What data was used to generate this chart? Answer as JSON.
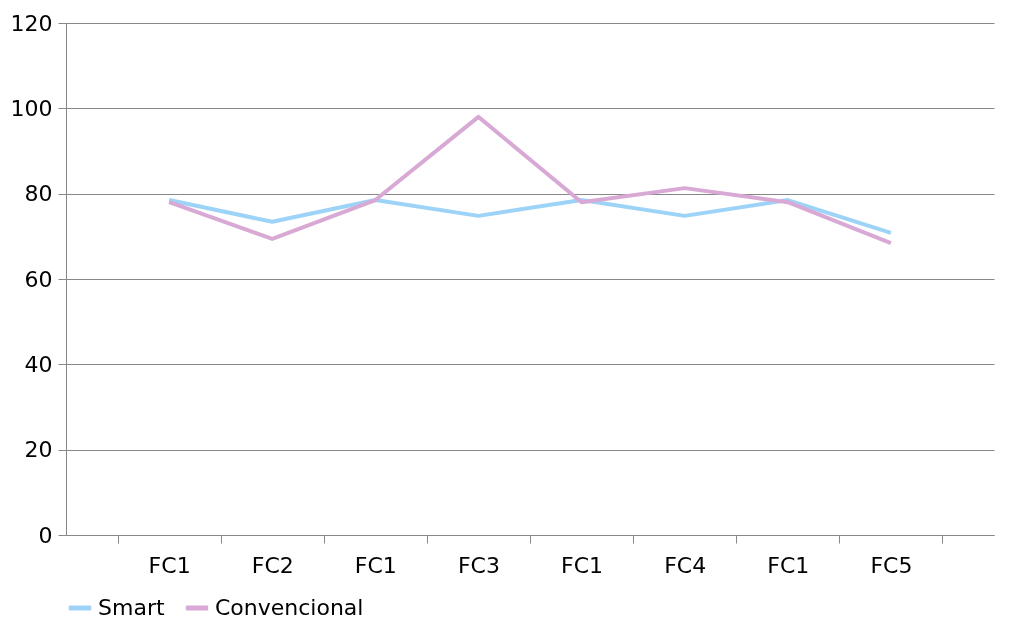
{
  "chart_data": {
    "type": "line",
    "categories": [
      "FC1",
      "FC2",
      "FC1",
      "FC3",
      "FC1",
      "FC4",
      "FC1",
      "FC5"
    ],
    "series": [
      {
        "name": "Smart",
        "color": "#9dd3f7",
        "values": [
          78.5,
          73.4,
          78.5,
          74.8,
          78.5,
          74.8,
          78.5,
          70.8
        ]
      },
      {
        "name": "Convencional",
        "color": "#d9a9d6",
        "values": [
          78,
          69.4,
          78.5,
          98,
          78,
          81.3,
          78,
          68.4
        ]
      }
    ],
    "ylim": [
      0,
      120
    ],
    "yticks": [
      0,
      20,
      40,
      60,
      80,
      100,
      120
    ],
    "grid": "y",
    "legend": "bottom",
    "marker": "none",
    "line_style": "solid"
  }
}
